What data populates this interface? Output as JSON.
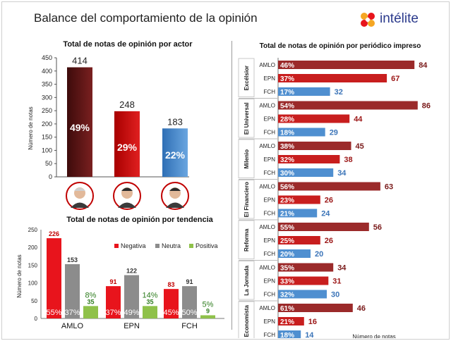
{
  "header": {
    "title": "Balance del comportamiento de la opinión",
    "brand": "intélite"
  },
  "colors": {
    "amlo_dark": "#5a1414",
    "epn_red": "#c00000",
    "fch_blue": "#4a86c8",
    "negativa": "#e8141c",
    "neutra": "#8c8c8c",
    "positiva": "#8fc14a",
    "bar_darkred": "#9b2a2a",
    "bar_red": "#c81e1e",
    "bar_blue": "#4f8fd0"
  },
  "chart_data": [
    {
      "type": "bar",
      "title": "Total de notas de opinión por actor",
      "ylabel": "Número de notas",
      "ylim": [
        0,
        450
      ],
      "yticks": [
        0,
        50,
        100,
        150,
        200,
        250,
        300,
        350,
        400,
        450
      ],
      "categories": [
        "AMLO",
        "EPN",
        "FCH"
      ],
      "values": [
        414,
        248,
        183
      ],
      "percent_labels": [
        "49%",
        "29%",
        "22%"
      ],
      "value_labels": [
        "414",
        "248",
        "183"
      ],
      "avatar_icons": [
        "amlo-portrait-icon",
        "epn-portrait-icon",
        "fch-portrait-icon"
      ]
    },
    {
      "type": "bar",
      "title": "Total de notas de opinión por tendencia",
      "ylabel": "Número de notas",
      "ylim": [
        0,
        250
      ],
      "yticks": [
        0,
        50,
        100,
        150,
        200,
        250
      ],
      "categories": [
        "AMLO",
        "EPN",
        "FCH"
      ],
      "legend": [
        "Negativa",
        "Neutra",
        "Positiva"
      ],
      "series": [
        {
          "name": "Negativa",
          "values": [
            226,
            91,
            83
          ],
          "percent": [
            "55%",
            "37%",
            "45%"
          ]
        },
        {
          "name": "Neutra",
          "values": [
            153,
            122,
            91
          ],
          "percent": [
            "37%",
            "49%",
            "50%"
          ]
        },
        {
          "name": "Positiva",
          "values": [
            35,
            35,
            9
          ],
          "percent": [
            "8%",
            "14%",
            "5%"
          ]
        }
      ]
    },
    {
      "type": "bar",
      "orientation": "horizontal",
      "title": "Total de notas de opinión por periódico impreso",
      "xlabel": "Número de notas",
      "xlim": [
        0,
        100
      ],
      "xticks": [
        0,
        20,
        40,
        60,
        80,
        100
      ],
      "groups": [
        {
          "name": "Excélsior",
          "rows": [
            {
              "actor": "AMLO",
              "value": 84,
              "percent": "46%"
            },
            {
              "actor": "EPN",
              "value": 67,
              "percent": "37%"
            },
            {
              "actor": "FCH",
              "value": 32,
              "percent": "17%"
            }
          ]
        },
        {
          "name": "El Universal",
          "rows": [
            {
              "actor": "AMLO",
              "value": 86,
              "percent": "54%"
            },
            {
              "actor": "EPN",
              "value": 44,
              "percent": "28%"
            },
            {
              "actor": "FCH",
              "value": 29,
              "percent": "18%"
            }
          ]
        },
        {
          "name": "Milenio",
          "rows": [
            {
              "actor": "AMLO",
              "value": 45,
              "percent": "38%"
            },
            {
              "actor": "EPN",
              "value": 38,
              "percent": "32%"
            },
            {
              "actor": "FCH",
              "value": 34,
              "percent": "30%"
            }
          ]
        },
        {
          "name": "El Financiero",
          "rows": [
            {
              "actor": "AMLO",
              "value": 63,
              "percent": "56%"
            },
            {
              "actor": "EPN",
              "value": 26,
              "percent": "23%"
            },
            {
              "actor": "FCH",
              "value": 24,
              "percent": "21%"
            }
          ]
        },
        {
          "name": "Reforma",
          "rows": [
            {
              "actor": "AMLO",
              "value": 56,
              "percent": "55%"
            },
            {
              "actor": "EPN",
              "value": 26,
              "percent": "25%"
            },
            {
              "actor": "FCH",
              "value": 20,
              "percent": "20%"
            }
          ]
        },
        {
          "name": "La Jornada",
          "rows": [
            {
              "actor": "AMLO",
              "value": 34,
              "percent": "35%"
            },
            {
              "actor": "EPN",
              "value": 31,
              "percent": "33%"
            },
            {
              "actor": "FCH",
              "value": 30,
              "percent": "32%"
            }
          ]
        },
        {
          "name": "Economista",
          "rows": [
            {
              "actor": "AMLO",
              "value": 46,
              "percent": "61%"
            },
            {
              "actor": "EPN",
              "value": 16,
              "percent": "21%"
            },
            {
              "actor": "FCH",
              "value": 14,
              "percent": "18%"
            }
          ]
        }
      ]
    }
  ]
}
